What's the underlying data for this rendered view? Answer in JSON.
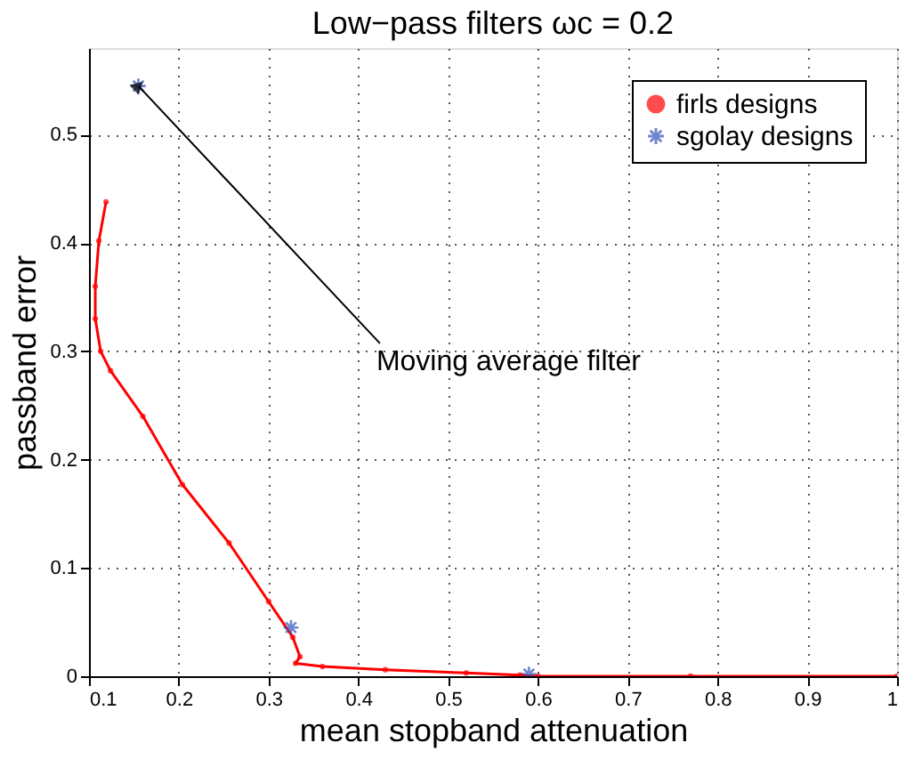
{
  "chart_data": {
    "type": "line",
    "title": "Low−pass filters ωc = 0.2",
    "xlabel": "mean stopband attenuation",
    "ylabel": "passband error",
    "xlim": [
      0.1,
      1
    ],
    "ylim": [
      0,
      0.58
    ],
    "xticks": [
      0.1,
      0.2,
      0.3,
      0.4,
      0.5,
      0.6,
      0.7,
      0.8,
      0.9,
      1
    ],
    "yticks": [
      0,
      0.1,
      0.2,
      0.3,
      0.4,
      0.5
    ],
    "grid": true,
    "legend": "top right",
    "series": [
      {
        "name": "firls designs",
        "color": "#ff0000",
        "marker": "circle",
        "x": [
          0.119,
          0.111,
          0.107,
          0.107,
          0.113,
          0.124,
          0.16,
          0.204,
          0.256,
          0.3,
          0.327,
          0.335,
          0.33,
          0.36,
          0.43,
          0.52,
          0.58,
          0.6,
          0.77,
          1.0
        ],
        "values": [
          0.438,
          0.402,
          0.36,
          0.33,
          0.3,
          0.282,
          0.24,
          0.177,
          0.123,
          0.069,
          0.036,
          0.018,
          0.012,
          0.009,
          0.006,
          0.003,
          0.001,
          0,
          0,
          0
        ]
      },
      {
        "name": "sgolay designs",
        "color": "#3355bb",
        "type": "scatter",
        "marker": "cross",
        "x": [
          0.155,
          0.325,
          0.59
        ],
        "values": [
          0.545,
          0.045,
          0.002
        ]
      }
    ],
    "annotations": [
      {
        "text": "Moving average filter",
        "x": 0.155,
        "y": 0.545
      }
    ]
  }
}
